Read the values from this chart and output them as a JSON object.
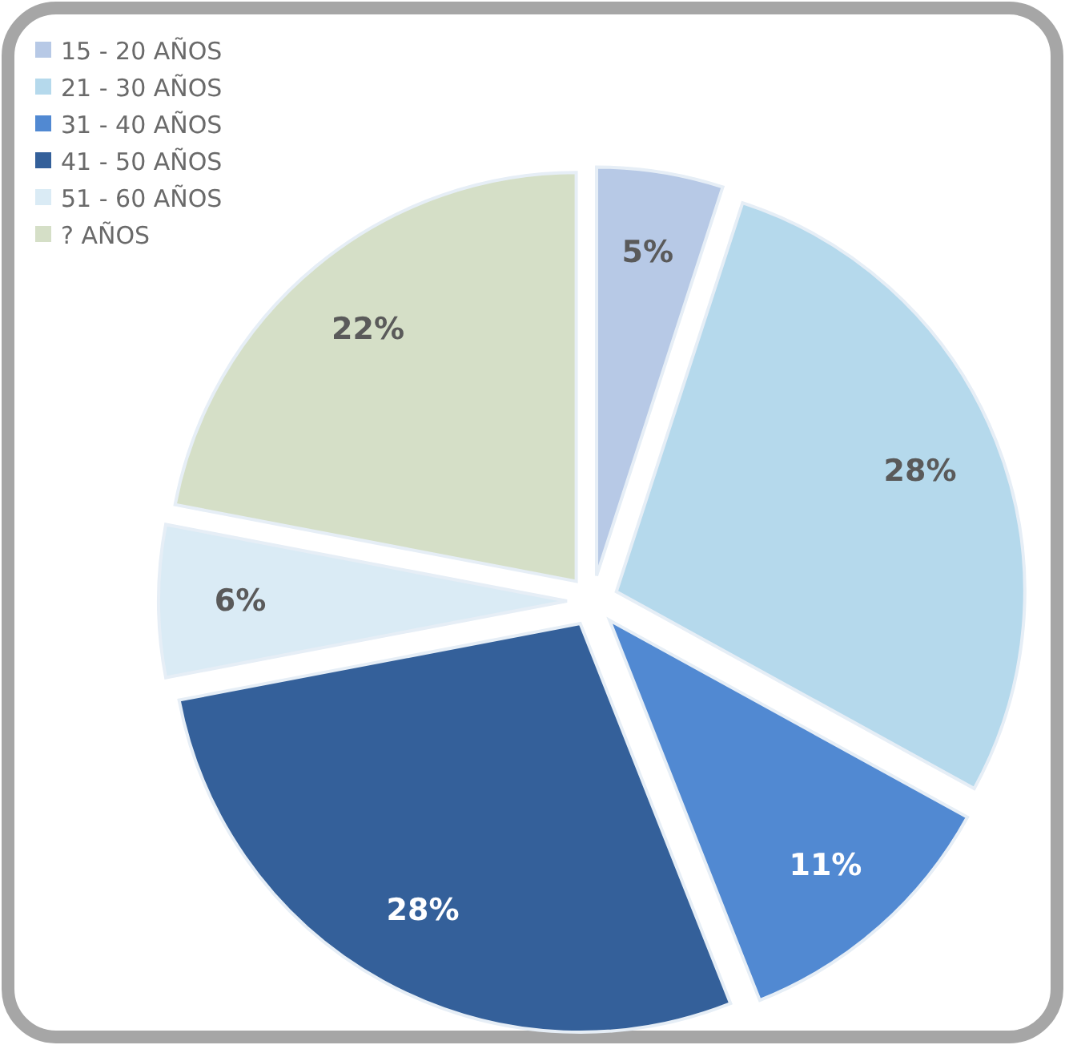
{
  "chart_data": {
    "type": "pie",
    "categories": [
      "15 - 20 AÑOS",
      "21 - 30 AÑOS",
      "31 - 40 AÑOS",
      "41 - 50 AÑOS",
      "51 - 60 AÑOS",
      "? AÑOS"
    ],
    "values": [
      5,
      28,
      11,
      28,
      6,
      22
    ],
    "colors": [
      "#b7c9e6",
      "#b5d9ec",
      "#5189d2",
      "#34609a",
      "#daebf5",
      "#d5dfc7"
    ],
    "value_labels": [
      "5%",
      "28%",
      "11%",
      "28%",
      "6%",
      "22%"
    ],
    "legend": "top left"
  }
}
